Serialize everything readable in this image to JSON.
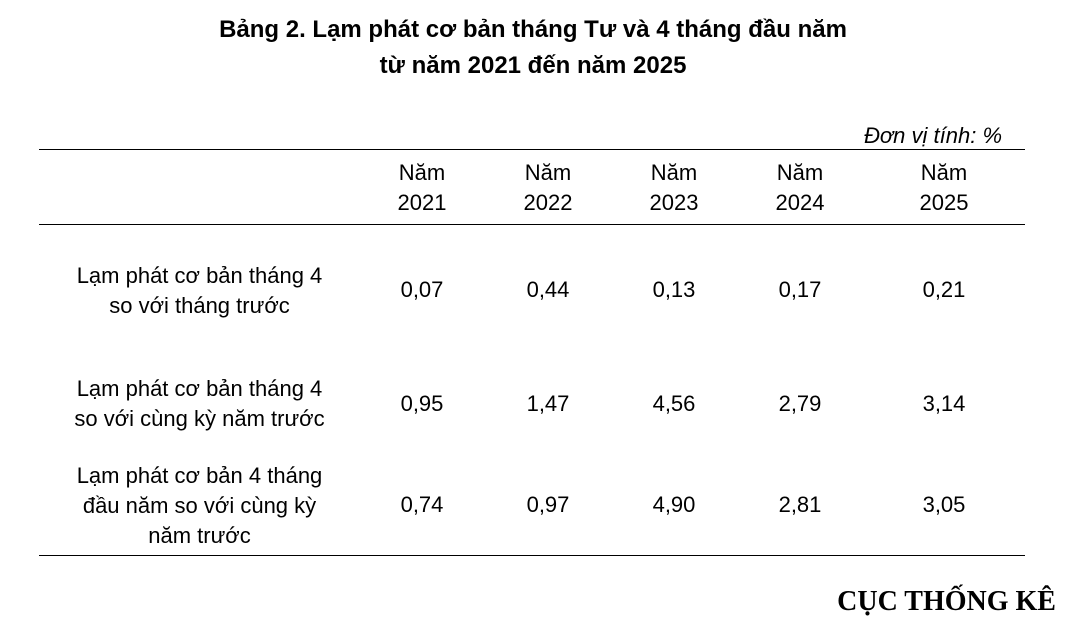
{
  "title": {
    "line1": "Bảng 2. Lạm phát cơ bản tháng Tư và 4 tháng đầu năm",
    "line2": "từ năm 2021 đến năm 2025"
  },
  "unit_label": "Đơn vị tính: %",
  "table": {
    "columns": [
      {
        "line1": "Năm",
        "line2": "2021"
      },
      {
        "line1": "Năm",
        "line2": "2022"
      },
      {
        "line1": "Năm",
        "line2": "2023"
      },
      {
        "line1": "Năm",
        "line2": "2024"
      },
      {
        "line1": "Năm",
        "line2": "2025"
      }
    ],
    "rows": [
      {
        "label_lines": [
          "Lạm phát cơ bản tháng 4",
          "so với tháng trước"
        ],
        "values": [
          "0,07",
          "0,44",
          "0,13",
          "0,17",
          "0,21"
        ]
      },
      {
        "label_lines": [
          "Lạm phát cơ bản tháng 4",
          "so với cùng kỳ năm trước"
        ],
        "values": [
          "0,95",
          "1,47",
          "4,56",
          "2,79",
          "3,14"
        ]
      },
      {
        "label_lines": [
          "Lạm phát cơ bản 4 tháng",
          "đầu năm so với cùng kỳ",
          "năm trước"
        ],
        "values": [
          "0,74",
          "0,97",
          "4,90",
          "2,81",
          "3,05"
        ]
      }
    ]
  },
  "footer": "CỤC THỐNG KÊ"
}
